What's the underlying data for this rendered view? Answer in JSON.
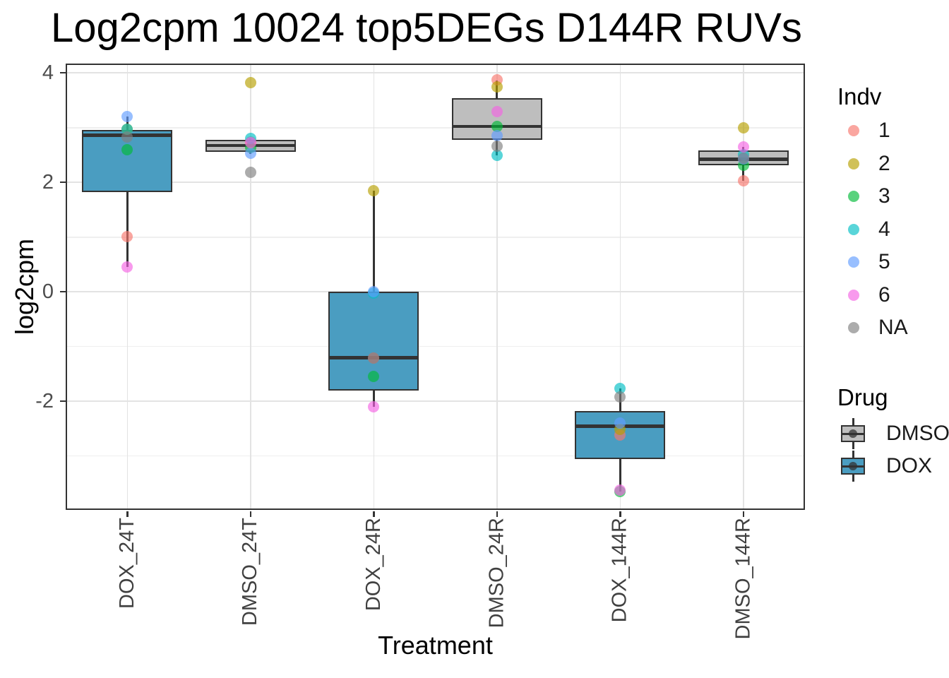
{
  "chart_data": {
    "type": "boxplot",
    "title": "Log2cpm 10024 top5DEGs D144R RUVs",
    "xlabel": "Treatment",
    "ylabel": "log2cpm",
    "ylim": [
      -3.99,
      4.17
    ],
    "yticks_major": [
      4,
      2,
      0,
      -2
    ],
    "yticks_minor": [
      3,
      1,
      -1,
      -3
    ],
    "grid": true,
    "legend_position": "right",
    "categories": [
      "DOX_24T",
      "DMSO_24T",
      "DOX_24R",
      "DMSO_24R",
      "DOX_144R",
      "DMSO_144R"
    ],
    "colors": {
      "dox_fill": "#4A9DC1",
      "dmso_fill": "#BEBEBE",
      "box_stroke": "#333333",
      "grid_major": "#E3E3E3",
      "grid_minor": "#EFEFEF",
      "grid_vertical": "#E3E3E3",
      "panel_bg": "#FFFFFF",
      "axis_text": "#4d4d4d",
      "indv": {
        "1": "rgba(248,118,109,0.65)",
        "2": "rgba(183,159,0,0.65)",
        "3": "rgba(0,186,56,0.65)",
        "4": "rgba(0,191,196,0.65)",
        "5": "rgba(97,156,255,0.65)",
        "6": "rgba(245,100,227,0.65)",
        "NA": "rgba(127,127,127,0.65)"
      }
    },
    "groups": [
      {
        "category": "DOX_24T",
        "drug": "DOX",
        "q1": 1.82,
        "median": 2.86,
        "q3": 2.95,
        "whisker_low": 0.45,
        "whisker_high": 3.2,
        "points": [
          {
            "indv": "1",
            "value": 1.01
          },
          {
            "indv": "2",
            "value": 2.97
          },
          {
            "indv": "3",
            "value": 2.59
          },
          {
            "indv": "4",
            "value": 2.97
          },
          {
            "indv": "5",
            "value": 3.2
          },
          {
            "indv": "6",
            "value": 0.45
          },
          {
            "indv": "NA",
            "value": 2.83
          }
        ]
      },
      {
        "category": "DMSO_24T",
        "drug": "DMSO",
        "q1": 2.56,
        "median": 2.67,
        "q3": 2.78,
        "whisker_low": 2.52,
        "whisker_high": 2.8,
        "points": [
          {
            "indv": "1",
            "value": 2.74
          },
          {
            "indv": "2",
            "value": 3.82
          },
          {
            "indv": "3",
            "value": 2.63
          },
          {
            "indv": "4",
            "value": 2.8
          },
          {
            "indv": "5",
            "value": 2.53
          },
          {
            "indv": "6",
            "value": 2.73
          },
          {
            "indv": "NA",
            "value": 2.18
          }
        ]
      },
      {
        "category": "DOX_24R",
        "drug": "DOX",
        "q1": -1.81,
        "median": -1.21,
        "q3": 0.0,
        "whisker_low": -2.1,
        "whisker_high": 1.85,
        "points": [
          {
            "indv": "1",
            "value": -1.22
          },
          {
            "indv": "2",
            "value": 1.85
          },
          {
            "indv": "3",
            "value": -1.55
          },
          {
            "indv": "4",
            "value": -0.02
          },
          {
            "indv": "5",
            "value": 0.0
          },
          {
            "indv": "6",
            "value": -2.1
          },
          {
            "indv": "NA",
            "value": -1.21
          }
        ]
      },
      {
        "category": "DMSO_24R",
        "drug": "DMSO",
        "q1": 2.77,
        "median": 3.02,
        "q3": 3.54,
        "whisker_low": 2.49,
        "whisker_high": 3.86,
        "points": [
          {
            "indv": "1",
            "value": 3.87
          },
          {
            "indv": "2",
            "value": 3.74
          },
          {
            "indv": "3",
            "value": 3.02
          },
          {
            "indv": "4",
            "value": 2.49
          },
          {
            "indv": "5",
            "value": 2.85
          },
          {
            "indv": "6",
            "value": 3.29
          },
          {
            "indv": "NA",
            "value": 2.66
          }
        ]
      },
      {
        "category": "DOX_144R",
        "drug": "DOX",
        "q1": -3.06,
        "median": -2.46,
        "q3": -2.18,
        "whisker_low": -3.65,
        "whisker_high": -1.77,
        "points": [
          {
            "indv": "1",
            "value": -2.62
          },
          {
            "indv": "2",
            "value": -2.52
          },
          {
            "indv": "3",
            "value": -3.66
          },
          {
            "indv": "4",
            "value": -1.77
          },
          {
            "indv": "5",
            "value": -2.4
          },
          {
            "indv": "6",
            "value": -3.63
          },
          {
            "indv": "NA",
            "value": -1.93
          }
        ]
      },
      {
        "category": "DMSO_144R",
        "drug": "DMSO",
        "q1": 2.31,
        "median": 2.42,
        "q3": 2.58,
        "whisker_low": 2.03,
        "whisker_high": 2.65,
        "points": [
          {
            "indv": "1",
            "value": 2.03
          },
          {
            "indv": "2",
            "value": 3.0
          },
          {
            "indv": "3",
            "value": 2.31
          },
          {
            "indv": "4",
            "value": 2.5
          },
          {
            "indv": "5",
            "value": 2.43
          },
          {
            "indv": "6",
            "value": 2.65
          },
          {
            "indv": "NA",
            "value": 2.44
          }
        ]
      }
    ],
    "legend": {
      "indv_title": "Indv",
      "indv_entries": [
        {
          "label": "1"
        },
        {
          "label": "2"
        },
        {
          "label": "3"
        },
        {
          "label": "4"
        },
        {
          "label": "5"
        },
        {
          "label": "6"
        },
        {
          "label": "NA"
        }
      ],
      "drug_title": "Drug",
      "drug_entries": [
        {
          "label": "DMSO",
          "fill": "#BEBEBE"
        },
        {
          "label": "DOX",
          "fill": "#4A9DC1"
        }
      ]
    }
  }
}
